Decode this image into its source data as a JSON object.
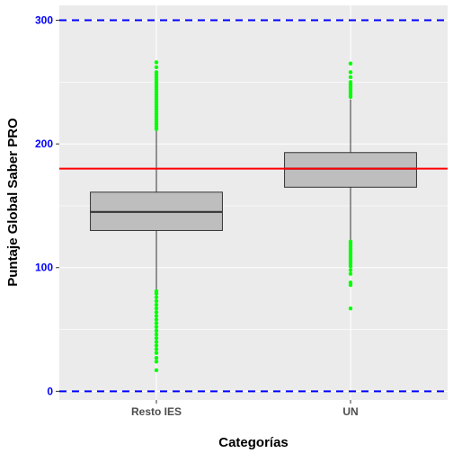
{
  "chart_data": {
    "type": "boxplot",
    "title": "",
    "xlabel": "Categorías",
    "ylabel": "Puntaje Global Saber PRO",
    "ylim": [
      -7,
      312
    ],
    "y_ticks": [
      0,
      100,
      200,
      300
    ],
    "y_tick_labels": [
      "0",
      "100",
      "200",
      "300"
    ],
    "grid": true,
    "categories": [
      "Resto IES",
      "UN"
    ],
    "boxes": [
      {
        "category": "Resto IES",
        "whisker_low": 82,
        "q1": 130,
        "median": 145,
        "q3": 161,
        "whisker_high": 211,
        "outliers_high": [
          212,
          214,
          216,
          218,
          220,
          222,
          224,
          226,
          228,
          230,
          232,
          234,
          236,
          238,
          240,
          242,
          244,
          246,
          248,
          250,
          252,
          254,
          256,
          258,
          262,
          266
        ],
        "outliers_low": [
          17,
          24,
          27,
          31,
          34,
          37,
          40,
          43,
          46,
          49,
          52,
          55,
          58,
          61,
          64,
          67,
          70,
          73,
          76,
          79,
          81
        ]
      },
      {
        "category": "UN",
        "whisker_low": 122,
        "q1": 165,
        "median": 180,
        "q3": 193,
        "whisker_high": 236,
        "outliers_high": [
          238,
          240,
          242,
          244,
          246,
          248,
          250,
          254,
          258,
          265
        ],
        "outliers_low": [
          67,
          86,
          88,
          95,
          98,
          101,
          103,
          105,
          107,
          109,
          111,
          113,
          115,
          117,
          119,
          121
        ]
      }
    ],
    "reference_lines": [
      {
        "y": 0,
        "style": "dashed",
        "color": "#0000ff"
      },
      {
        "y": 300,
        "style": "dashed",
        "color": "#0000ff"
      },
      {
        "y": 180,
        "style": "solid",
        "color": "#ff0000"
      }
    ],
    "colors": {
      "panel_background": "#ebebeb",
      "grid": "#ffffff",
      "box_fill": "#bebebe",
      "box_line": "#333333",
      "outlier": "#00ff00",
      "y_tick_label": "#0000ff",
      "x_tick_label": "#4d4d4d"
    }
  }
}
